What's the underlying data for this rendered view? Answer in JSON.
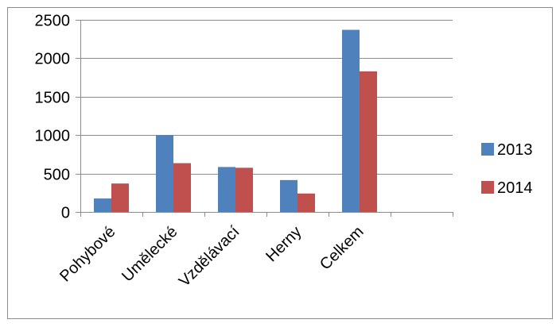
{
  "chart_data": {
    "type": "bar",
    "categories": [
      "Pohybové",
      "Umělecké",
      "Vzdělávací",
      "Herny",
      "Celkem",
      ""
    ],
    "series": [
      {
        "name": "2013",
        "values": [
          175,
          1000,
          585,
          415,
          2370,
          null
        ],
        "color": "#4f81bd"
      },
      {
        "name": "2014",
        "values": [
          370,
          635,
          575,
          240,
          1830,
          null
        ],
        "color": "#c0504d"
      }
    ],
    "title": "",
    "xlabel": "",
    "ylabel": "",
    "ylim": [
      0,
      2500
    ],
    "yticks": [
      "0",
      "500",
      "1000",
      "1500",
      "2000",
      "2500"
    ],
    "grid": true,
    "legend": "right"
  }
}
